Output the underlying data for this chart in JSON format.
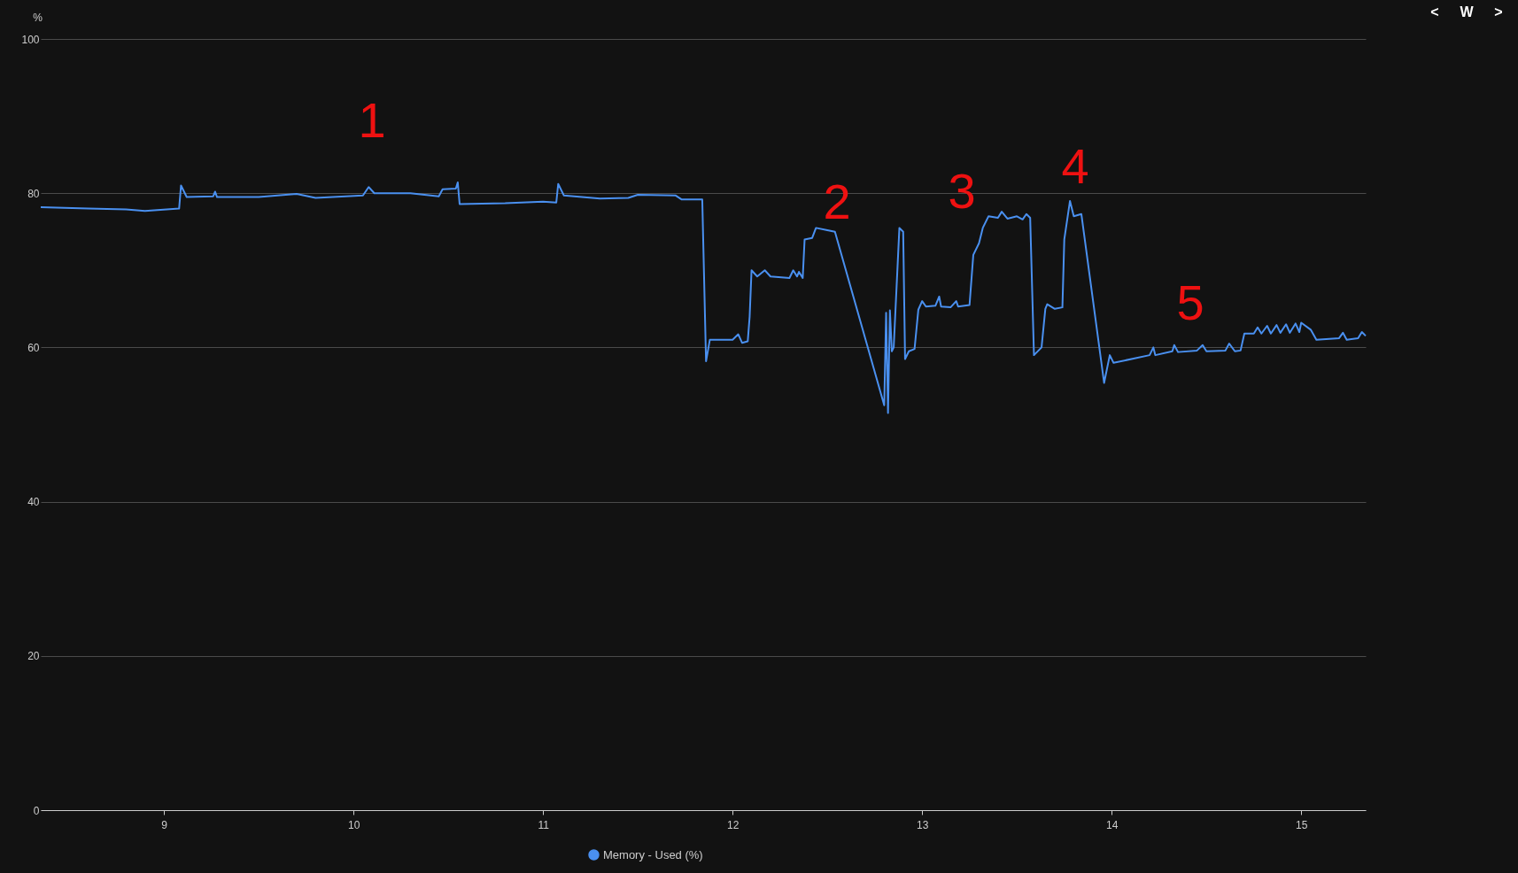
{
  "chart_data": {
    "type": "line",
    "ylabel": "%",
    "xlim": [
      8.35,
      15.34
    ],
    "ylim": [
      0,
      100
    ],
    "xticks": [
      9,
      10,
      11,
      12,
      13,
      14,
      15
    ],
    "yticks": [
      0,
      20,
      40,
      60,
      80,
      100
    ],
    "grid": "y",
    "legend": "bottom",
    "marker": "none",
    "line_style": "solid",
    "x": [
      8.35,
      8.6,
      8.8,
      8.9,
      9.08,
      9.09,
      9.12,
      9.26,
      9.27,
      9.28,
      9.5,
      9.7,
      9.8,
      10.05,
      10.08,
      10.11,
      10.3,
      10.45,
      10.47,
      10.54,
      10.55,
      10.56,
      10.8,
      11.0,
      11.07,
      11.08,
      11.11,
      11.3,
      11.45,
      11.5,
      11.7,
      11.73,
      11.84,
      11.86,
      11.88,
      12.0,
      12.03,
      12.05,
      12.08,
      12.09,
      12.1,
      12.13,
      12.17,
      12.2,
      12.3,
      12.32,
      12.34,
      12.35,
      12.37,
      12.38,
      12.42,
      12.44,
      12.5,
      12.54,
      12.8,
      12.81,
      12.82,
      12.83,
      12.84,
      12.85,
      12.88,
      12.9,
      12.91,
      12.93,
      12.96,
      12.98,
      13.0,
      13.02,
      13.07,
      13.09,
      13.1,
      13.15,
      13.18,
      13.19,
      13.25,
      13.27,
      13.3,
      13.32,
      13.35,
      13.4,
      13.42,
      13.45,
      13.5,
      13.53,
      13.55,
      13.57,
      13.59,
      13.63,
      13.65,
      13.66,
      13.7,
      13.74,
      13.75,
      13.78,
      13.8,
      13.84,
      13.96,
      13.99,
      14.01,
      14.2,
      14.22,
      14.23,
      14.32,
      14.33,
      14.35,
      14.45,
      14.48,
      14.5,
      14.6,
      14.62,
      14.65,
      14.68,
      14.7,
      14.75,
      14.77,
      14.79,
      14.82,
      14.84,
      14.87,
      14.89,
      14.92,
      14.94,
      14.97,
      14.99,
      15.0,
      15.05,
      15.08,
      15.2,
      15.22,
      15.24,
      15.3,
      15.32,
      15.34
    ],
    "series": [
      {
        "name": "Memory - Used (%)",
        "color": "#4a90f0",
        "values": [
          78.2,
          78.0,
          77.9,
          77.7,
          78.0,
          81.0,
          79.5,
          79.6,
          80.2,
          79.5,
          79.5,
          79.9,
          79.4,
          79.7,
          80.8,
          80.0,
          80.0,
          79.6,
          80.5,
          80.6,
          81.4,
          78.6,
          78.7,
          78.9,
          78.8,
          81.2,
          79.7,
          79.3,
          79.4,
          79.8,
          79.7,
          79.2,
          79.2,
          58.2,
          61.0,
          61.0,
          61.7,
          60.6,
          60.8,
          64.0,
          70.0,
          69.2,
          70.0,
          69.2,
          69.0,
          70.0,
          69.2,
          69.8,
          69.0,
          74.0,
          74.2,
          75.5,
          75.2,
          75.0,
          52.5,
          64.5,
          51.5,
          64.8,
          59.5,
          60.0,
          75.5,
          75.0,
          58.5,
          59.5,
          59.8,
          64.9,
          66.0,
          65.3,
          65.4,
          66.6,
          65.3,
          65.2,
          66.0,
          65.3,
          65.5,
          72.0,
          73.5,
          75.5,
          77.0,
          76.8,
          77.6,
          76.7,
          77.0,
          76.6,
          77.3,
          76.8,
          59.0,
          60.0,
          65.0,
          65.6,
          65.0,
          65.2,
          74.0,
          79.0,
          77.0,
          77.3,
          55.4,
          59.0,
          58.0,
          59.0,
          60.0,
          59.0,
          59.5,
          60.3,
          59.4,
          59.6,
          60.3,
          59.5,
          59.6,
          60.5,
          59.5,
          59.6,
          61.8,
          61.8,
          62.6,
          61.8,
          62.8,
          61.8,
          62.9,
          61.9,
          63.0,
          61.9,
          63.1,
          62.0,
          63.2,
          62.3,
          61.0,
          61.2,
          61.9,
          61.0,
          61.2,
          62.0,
          61.5
        ]
      }
    ],
    "annotations": [
      "1",
      "2",
      "3",
      "4",
      "5",
      "<",
      "W",
      ">"
    ]
  }
}
